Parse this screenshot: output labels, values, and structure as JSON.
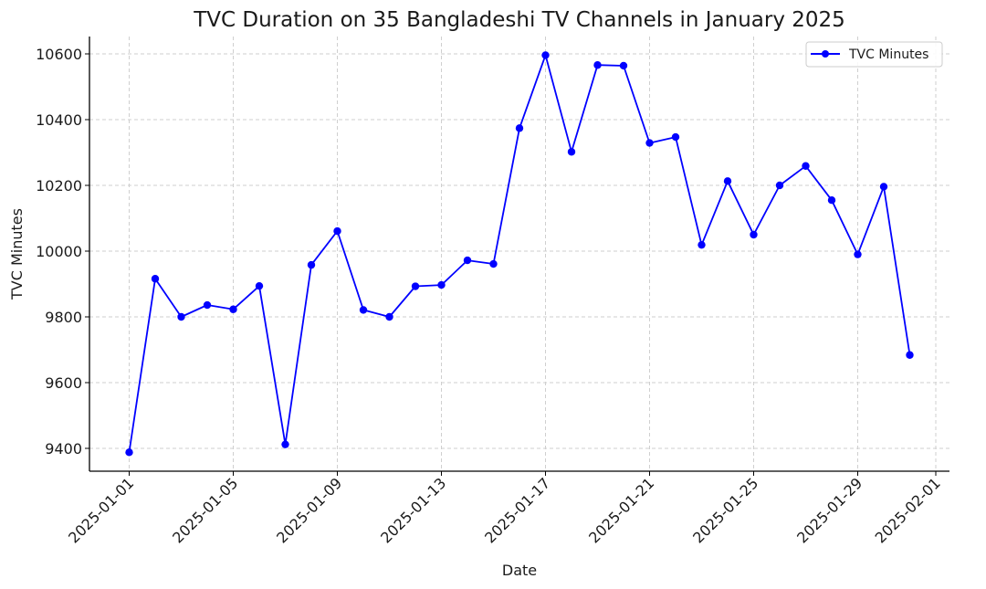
{
  "chart_data": {
    "type": "line",
    "title": "TVC Duration on 35 Bangladeshi TV Channels in January 2025",
    "xlabel": "Date",
    "ylabel": "TVC Minutes",
    "ylim": [
      9330,
      10650
    ],
    "yticks": [
      9400,
      9600,
      9800,
      10000,
      10200,
      10400,
      10600
    ],
    "xticks": [
      "2025-01-01",
      "2025-01-05",
      "2025-01-09",
      "2025-01-13",
      "2025-01-17",
      "2025-01-21",
      "2025-01-25",
      "2025-01-29",
      "2025-02-01"
    ],
    "grid": true,
    "legend_position": "upper right",
    "x": [
      "2025-01-01",
      "2025-01-02",
      "2025-01-03",
      "2025-01-04",
      "2025-01-05",
      "2025-01-06",
      "2025-01-07",
      "2025-01-08",
      "2025-01-09",
      "2025-01-10",
      "2025-01-11",
      "2025-01-12",
      "2025-01-13",
      "2025-01-14",
      "2025-01-15",
      "2025-01-16",
      "2025-01-17",
      "2025-01-18",
      "2025-01-19",
      "2025-01-20",
      "2025-01-21",
      "2025-01-22",
      "2025-01-23",
      "2025-01-24",
      "2025-01-25",
      "2025-01-26",
      "2025-01-27",
      "2025-01-28",
      "2025-01-29",
      "2025-01-30",
      "2025-01-31"
    ],
    "series": [
      {
        "name": "TVC Minutes",
        "color": "#0000ff",
        "marker": "circle",
        "values": [
          9388,
          9916,
          9800,
          9836,
          9823,
          9894,
          9412,
          9958,
          10061,
          9821,
          9800,
          9893,
          9897,
          9972,
          9961,
          10374,
          10596,
          10302,
          10566,
          10564,
          10329,
          10347,
          10019,
          10213,
          10050,
          10200,
          10259,
          10155,
          9990,
          10196,
          9684
        ]
      }
    ]
  }
}
